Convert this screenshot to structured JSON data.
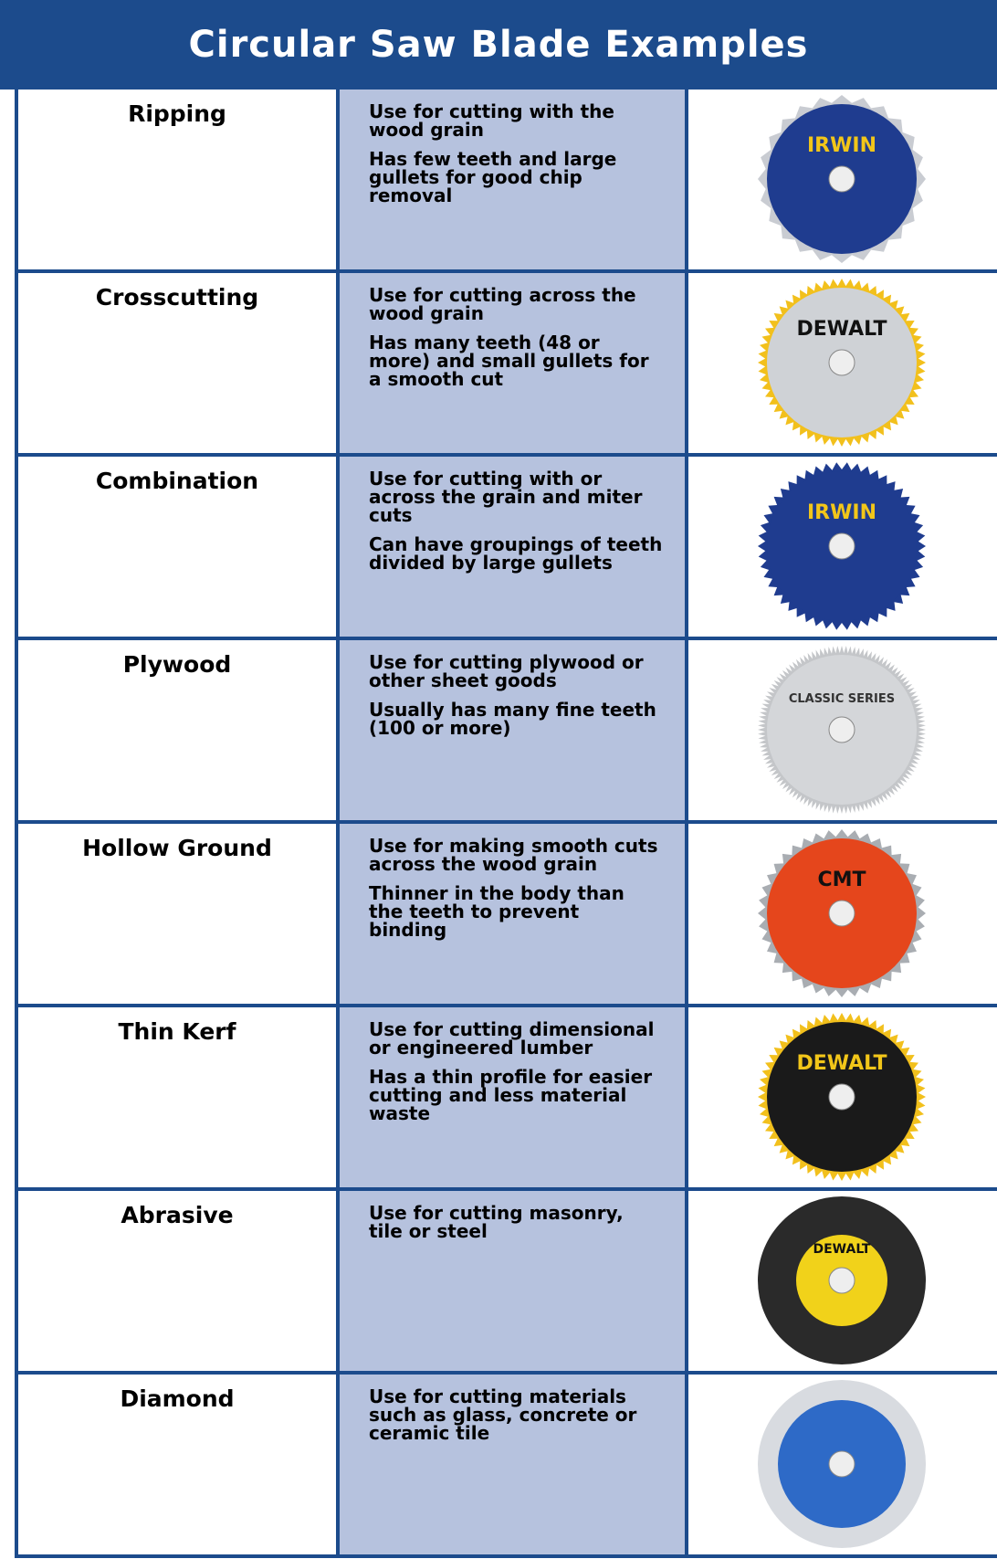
{
  "header": {
    "title": "Circular Saw Blade Examples"
  },
  "rows": [
    {
      "name": "Ripping",
      "description": [
        "Use for cutting with the wood grain",
        "Has few teeth and large gullets for good chip removal"
      ],
      "brand": "IRWIN"
    },
    {
      "name": "Crosscutting",
      "description": [
        "Use for cutting across the wood grain",
        "Has many teeth (48 or more) and small gullets for a smooth cut"
      ],
      "brand": "DEWALT"
    },
    {
      "name": "Combination",
      "description": [
        "Use for cutting with or across the grain and miter cuts",
        "Can have groupings of teeth divided by large gullets"
      ],
      "brand": "IRWIN"
    },
    {
      "name": "Plywood",
      "description": [
        "Use for cutting plywood or other sheet goods",
        "Usually has many fine teeth (100 or more)"
      ],
      "brand": "CLASSIC SERIES"
    },
    {
      "name": "Hollow Ground",
      "description": [
        "Use for making smooth cuts across the wood grain",
        "Thinner in the body than the teeth to prevent binding"
      ],
      "brand": "CMT"
    },
    {
      "name": "Thin Kerf",
      "description": [
        "Use for cutting dimensional or engineered lumber",
        "Has a thin profile for easier cutting and less material waste"
      ],
      "brand": "DEWALT"
    },
    {
      "name": "Abrasive",
      "description": [
        "Use for cutting masonry, tile or steel"
      ],
      "brand": "DEWALT"
    },
    {
      "name": "Diamond",
      "description": [
        "Use for cutting materials such as glass, concrete or ceramic tile"
      ]
    }
  ]
}
